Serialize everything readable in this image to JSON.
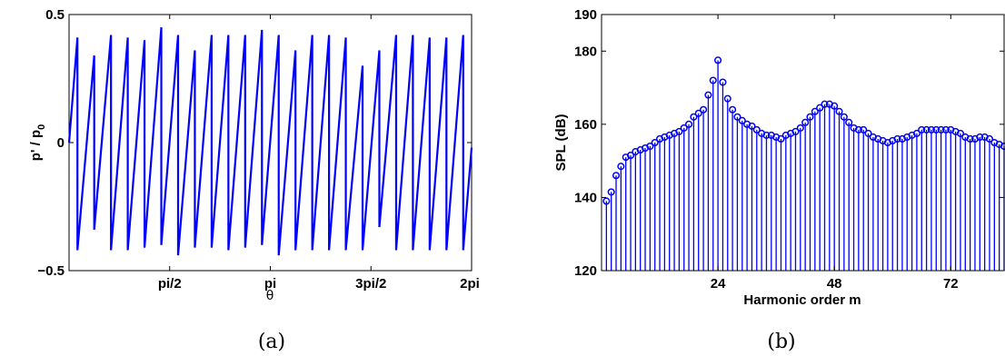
{
  "chart_data": [
    {
      "type": "line",
      "title": "",
      "xlabel": "θ",
      "ylabel": "p' / p0",
      "ylabel_main": "p' / p",
      "ylabel_sub": "0",
      "caption": "(a)",
      "xlim": [
        0,
        6.2832
      ],
      "ylim": [
        -0.5,
        0.5
      ],
      "x_ticks": [
        {
          "value": 1.5708,
          "label": "pi/2"
        },
        {
          "value": 3.1416,
          "label": "pi"
        },
        {
          "value": 4.7124,
          "label": "3pi/2"
        },
        {
          "value": 6.2832,
          "label": "2pi"
        }
      ],
      "y_ticks": [
        {
          "value": -0.5,
          "label": "−0.5"
        },
        {
          "value": 0,
          "label": "0"
        },
        {
          "value": 0.5,
          "label": "0.5"
        }
      ],
      "color": "#0000ff",
      "waveform": {
        "start_x": 0,
        "start_y": 0,
        "end_x": 6.2832,
        "end_y": -0.02,
        "teeth": [
          {
            "x": 0.1309,
            "low": -0.42,
            "high": 0.41
          },
          {
            "x": 0.3927,
            "low": -0.34,
            "high": 0.34
          },
          {
            "x": 0.6545,
            "low": -0.42,
            "high": 0.42
          },
          {
            "x": 0.9163,
            "low": -0.42,
            "high": 0.41
          },
          {
            "x": 1.1781,
            "low": -0.41,
            "high": 0.4
          },
          {
            "x": 1.4399,
            "low": -0.4,
            "high": 0.45
          },
          {
            "x": 1.7017,
            "low": -0.44,
            "high": 0.42
          },
          {
            "x": 1.9635,
            "low": -0.41,
            "high": 0.36
          },
          {
            "x": 2.2253,
            "low": -0.41,
            "high": 0.42
          },
          {
            "x": 2.4871,
            "low": -0.42,
            "high": 0.42
          },
          {
            "x": 2.7489,
            "low": -0.41,
            "high": 0.42
          },
          {
            "x": 3.0107,
            "low": -0.4,
            "high": 0.44
          },
          {
            "x": 3.2725,
            "low": -0.44,
            "high": 0.42
          },
          {
            "x": 3.5343,
            "low": -0.42,
            "high": 0.36
          },
          {
            "x": 3.7961,
            "low": -0.42,
            "high": 0.42
          },
          {
            "x": 4.0579,
            "low": -0.42,
            "high": 0.42
          },
          {
            "x": 4.3197,
            "low": -0.42,
            "high": 0.41
          },
          {
            "x": 4.5815,
            "low": -0.42,
            "high": 0.3
          },
          {
            "x": 4.8433,
            "low": -0.33,
            "high": 0.36
          },
          {
            "x": 5.1051,
            "low": -0.42,
            "high": 0.42
          },
          {
            "x": 5.3669,
            "low": -0.42,
            "high": 0.42
          },
          {
            "x": 5.6287,
            "low": -0.42,
            "high": 0.41
          },
          {
            "x": 5.8905,
            "low": -0.42,
            "high": 0.41
          },
          {
            "x": 6.1523,
            "low": -0.42,
            "high": 0.42
          }
        ]
      }
    },
    {
      "type": "stem",
      "title": "",
      "xlabel": "Harmonic order m",
      "ylabel": "SPL (dB)",
      "caption": "(b)",
      "xlim": [
        0,
        83
      ],
      "ylim": [
        120,
        190
      ],
      "x_ticks": [
        24,
        48,
        72
      ],
      "y_ticks": [
        120,
        140,
        160,
        180,
        190
      ],
      "color": "#0000ff",
      "x": [
        1,
        2,
        3,
        4,
        5,
        6,
        7,
        8,
        9,
        10,
        11,
        12,
        13,
        14,
        15,
        16,
        17,
        18,
        19,
        20,
        21,
        22,
        23,
        24,
        25,
        26,
        27,
        28,
        29,
        30,
        31,
        32,
        33,
        34,
        35,
        36,
        37,
        38,
        39,
        40,
        41,
        42,
        43,
        44,
        45,
        46,
        47,
        48,
        49,
        50,
        51,
        52,
        53,
        54,
        55,
        56,
        57,
        58,
        59,
        60,
        61,
        62,
        63,
        64,
        65,
        66,
        67,
        68,
        69,
        70,
        71,
        72,
        73,
        74,
        75,
        76,
        77,
        78,
        79,
        80,
        81,
        82,
        83
      ],
      "values": [
        139,
        141.5,
        146,
        148.5,
        151,
        151.5,
        152.5,
        153,
        153.5,
        154,
        155,
        156,
        156.5,
        157,
        157.5,
        158,
        159,
        160,
        162,
        163,
        164,
        168,
        172,
        177.5,
        171.5,
        167,
        164,
        162,
        161,
        160,
        159.5,
        158.5,
        157.5,
        157,
        157,
        156.5,
        156,
        157,
        157.5,
        158,
        159,
        160.5,
        162,
        163.5,
        164.5,
        165.5,
        165.5,
        165,
        163.5,
        162,
        160.5,
        159,
        158.5,
        158.5,
        157.5,
        156.5,
        156,
        155.5,
        155,
        155.5,
        156,
        156,
        156.5,
        157,
        157.5,
        158.5,
        158.5,
        158.5,
        158.5,
        158.5,
        158.5,
        158.5,
        158,
        157.5,
        156.5,
        156,
        156,
        156.5,
        156.5,
        156,
        155,
        154.5,
        154
      ]
    }
  ]
}
